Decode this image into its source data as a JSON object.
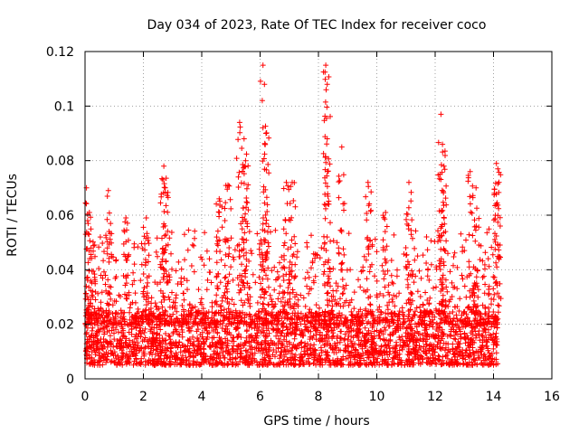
{
  "chart_data": {
    "type": "scatter",
    "title": "Day 034 of 2023, Rate Of TEC Index for receiver coco",
    "xlabel": "GPS time / hours",
    "ylabel": "ROTI / TECUs",
    "xlim": [
      0,
      16
    ],
    "ylim": [
      0,
      0.12
    ],
    "xticks": [
      0,
      2,
      4,
      6,
      8,
      10,
      12,
      14,
      16
    ],
    "yticks": [
      0,
      0.02,
      0.04,
      0.06,
      0.08,
      0.1,
      0.12
    ],
    "xtick_labels": [
      "0",
      "2",
      "4",
      "6",
      "8",
      "10",
      "12",
      "14",
      "16"
    ],
    "ytick_labels": [
      "0",
      "0.02",
      "0.04",
      "0.06",
      "0.08",
      "0.1",
      "0.12"
    ],
    "grid": true,
    "marker": "+",
    "color": "#ff0000",
    "x_data_range": [
      0,
      14.15
    ],
    "baseline_range": [
      0.005,
      0.025
    ],
    "peaks": [
      {
        "x": 0.05,
        "y": 0.07
      },
      {
        "x": 0.15,
        "y": 0.061
      },
      {
        "x": 0.8,
        "y": 0.069
      },
      {
        "x": 1.4,
        "y": 0.059
      },
      {
        "x": 2.1,
        "y": 0.059
      },
      {
        "x": 2.7,
        "y": 0.078
      },
      {
        "x": 2.75,
        "y": 0.07
      },
      {
        "x": 4.6,
        "y": 0.066
      },
      {
        "x": 4.9,
        "y": 0.071
      },
      {
        "x": 5.3,
        "y": 0.094
      },
      {
        "x": 5.45,
        "y": 0.088
      },
      {
        "x": 5.5,
        "y": 0.08
      },
      {
        "x": 6.1,
        "y": 0.115
      },
      {
        "x": 6.15,
        "y": 0.108
      },
      {
        "x": 6.2,
        "y": 0.09
      },
      {
        "x": 6.9,
        "y": 0.072
      },
      {
        "x": 7.1,
        "y": 0.072
      },
      {
        "x": 8.25,
        "y": 0.115
      },
      {
        "x": 8.3,
        "y": 0.108
      },
      {
        "x": 8.3,
        "y": 0.088
      },
      {
        "x": 8.8,
        "y": 0.085
      },
      {
        "x": 9.7,
        "y": 0.072
      },
      {
        "x": 10.3,
        "y": 0.061
      },
      {
        "x": 11.1,
        "y": 0.072
      },
      {
        "x": 12.2,
        "y": 0.097
      },
      {
        "x": 12.25,
        "y": 0.086
      },
      {
        "x": 12.3,
        "y": 0.078
      },
      {
        "x": 13.2,
        "y": 0.076
      },
      {
        "x": 13.4,
        "y": 0.07
      },
      {
        "x": 14.1,
        "y": 0.079
      },
      {
        "x": 14.15,
        "y": 0.077
      }
    ]
  }
}
